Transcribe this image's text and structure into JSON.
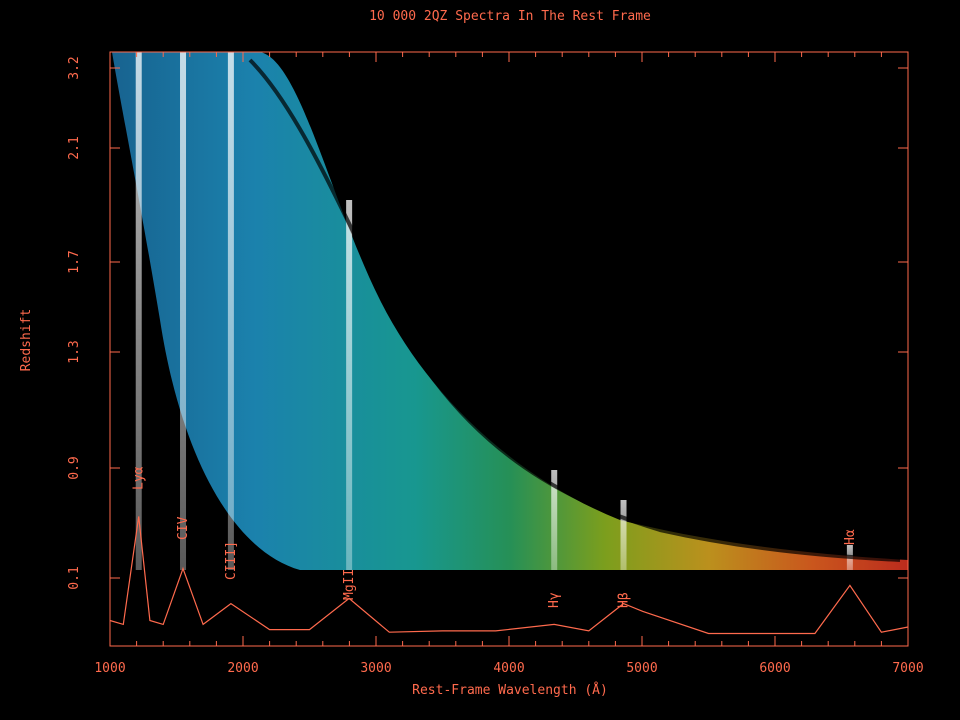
{
  "chart_data": {
    "type": "heatmap",
    "title": "10 000 2QZ Spectra In The Rest Frame",
    "xlabel": "Rest-Frame Wavelength (Å)",
    "ylabel": "Redshift",
    "xlim": [
      1000,
      7000
    ],
    "x_ticks": [
      1000,
      2000,
      3000,
      4000,
      5000,
      6000,
      7000
    ],
    "y_ticks": [
      "0.1",
      "0.9",
      "1.3",
      "1.7",
      "2.1",
      "3.2"
    ],
    "lines": [
      {
        "label": "Lyα",
        "wavelength": 1216
      },
      {
        "label": "CIV",
        "wavelength": 1549
      },
      {
        "label": "CIII]",
        "wavelength": 1909
      },
      {
        "label": "MgII",
        "wavelength": 2798
      },
      {
        "label": "Hγ",
        "wavelength": 4340
      },
      {
        "label": "Hβ",
        "wavelength": 4861
      },
      {
        "label": "Hα",
        "wavelength": 6563
      }
    ],
    "composite_spectrum": {
      "x": [
        1000,
        1100,
        1216,
        1300,
        1400,
        1549,
        1700,
        1909,
        2200,
        2500,
        2798,
        3100,
        3500,
        3900,
        4340,
        4600,
        4861,
        5007,
        5500,
        6000,
        6300,
        6563,
        6800,
        7000
      ],
      "y": [
        0.15,
        0.12,
        0.95,
        0.15,
        0.12,
        0.55,
        0.12,
        0.28,
        0.08,
        0.08,
        0.32,
        0.06,
        0.07,
        0.07,
        0.12,
        0.07,
        0.28,
        0.22,
        0.05,
        0.05,
        0.05,
        0.42,
        0.06,
        0.1
      ]
    }
  }
}
